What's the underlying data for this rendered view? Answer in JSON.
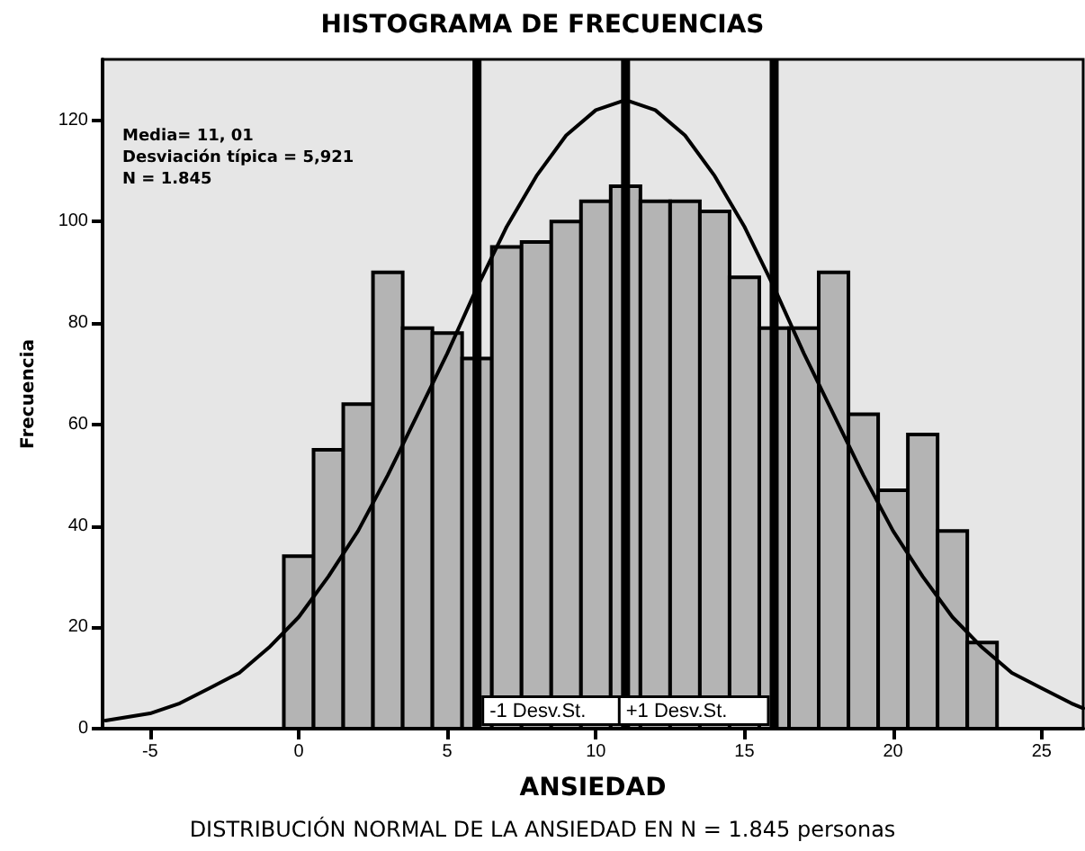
{
  "chart_data": {
    "type": "histogram",
    "title": "HISTOGRAMA DE FRECUENCIAS",
    "xlabel": "ANSIEDAD",
    "ylabel": "Frecuencia",
    "bins": [
      -0.5,
      0.5,
      1.5,
      2.5,
      3.5,
      4.5,
      5.5,
      6.5,
      7.5,
      8.5,
      9.5,
      10.5,
      11.5,
      12.5,
      13.5,
      14.5,
      15.5,
      16.5,
      17.5,
      18.5,
      19.5,
      20.5,
      21.5,
      22.5,
      23.5
    ],
    "values": [
      34,
      55,
      64,
      90,
      79,
      78,
      73,
      95,
      96,
      100,
      104,
      107,
      104,
      104,
      102,
      89,
      79,
      79,
      90,
      62,
      47,
      58,
      39,
      17
    ],
    "color": "#b4b4b4",
    "series": [
      {
        "type": "line",
        "color": "#000000",
        "x": [
          -6.5,
          -5,
          -4,
          -3,
          -2,
          -1,
          0,
          1,
          2,
          3,
          4,
          5,
          6,
          7,
          8,
          9,
          10,
          11,
          12,
          13,
          14,
          15,
          16,
          17,
          18,
          19,
          20,
          21,
          22,
          23,
          24,
          25,
          26,
          26.4
        ],
        "values": [
          1.6,
          3,
          5,
          8,
          11,
          16,
          22,
          30,
          39,
          50,
          62,
          74,
          87,
          99,
          109,
          117,
          122,
          124,
          122,
          117,
          109,
          99,
          87,
          74,
          62,
          50,
          39,
          30,
          22,
          16,
          11,
          8,
          5,
          4
        ]
      }
    ],
    "ref_lines": [
      {
        "axis": "x",
        "value": 6,
        "label": "-1 Desv.St."
      },
      {
        "axis": "x",
        "value": 11
      },
      {
        "axis": "x",
        "value": 16,
        "label": "+1 Desv.St."
      }
    ],
    "annotations": [
      "Media= 11, 01\nDesviación típica = 5,921\nN = 1.845",
      "DISTRIBUCIÓN NORMAL DE LA ANSIEDAD EN N = 1.845 personas"
    ],
    "xlim": [
      -6.6,
      26.4
    ],
    "ylim": [
      0,
      132
    ],
    "xticks": [
      -5,
      0,
      5,
      10,
      15,
      20,
      25
    ],
    "yticks": [
      0,
      20,
      40,
      60,
      80,
      100,
      120
    ],
    "marker": "none",
    "line_style": "solid"
  }
}
